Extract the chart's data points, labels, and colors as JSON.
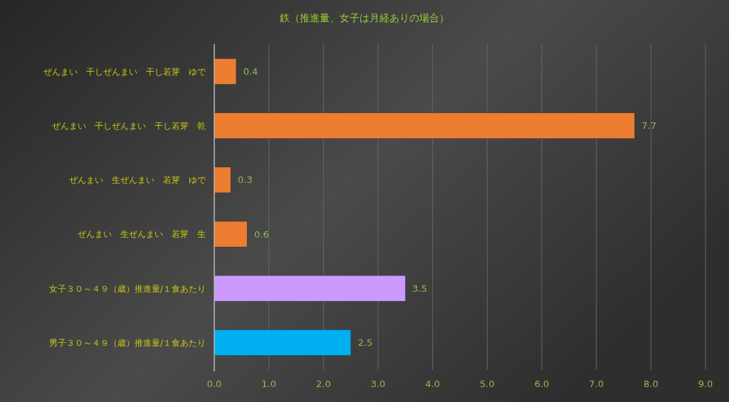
{
  "chart_data": {
    "type": "bar",
    "orientation": "horizontal",
    "title": "鉄（推進量、女子は月経ありの場合）",
    "categories": [
      "ぜんまい　干しぜんまい　干し若芽　ゆで",
      "ぜんまい　干しぜんまい　干し若芽　乾",
      "ぜんまい　生ぜんまい　若芽　ゆで",
      "ぜんまい　生ぜんまい　若芽　生",
      "女子３０～４９（歳）推進量/１食あたり",
      "男子３０～４９（歳）推進量/１食あたり"
    ],
    "values": [
      0.4,
      7.7,
      0.3,
      0.6,
      3.5,
      2.5
    ],
    "colors": [
      "#ed7d31",
      "#ed7d31",
      "#ed7d31",
      "#ed7d31",
      "#cc99ff",
      "#00b0f0"
    ],
    "xlim": [
      0,
      9
    ],
    "xticks": [
      {
        "value": 0,
        "label": "0.0"
      },
      {
        "value": 1,
        "label": "1.0"
      },
      {
        "value": 2,
        "label": "2.0"
      },
      {
        "value": 3,
        "label": "3.0"
      },
      {
        "value": 4,
        "label": "4.0"
      },
      {
        "value": 5,
        "label": "5.0"
      },
      {
        "value": 6,
        "label": "6.0"
      },
      {
        "value": 7,
        "label": "7.0"
      },
      {
        "value": 8,
        "label": "8.0"
      },
      {
        "value": 9,
        "label": "9.0"
      }
    ],
    "grid": "x",
    "data_labels": true
  }
}
